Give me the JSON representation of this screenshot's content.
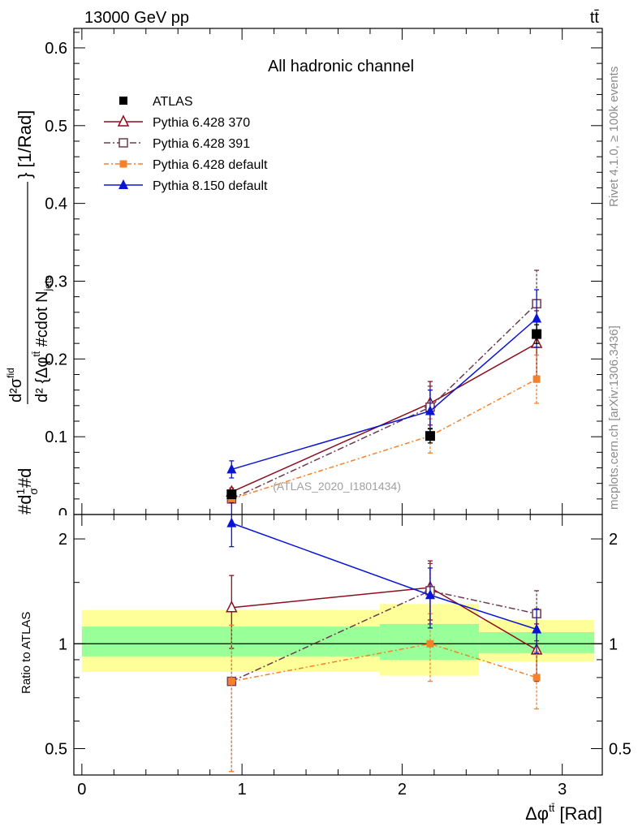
{
  "header": {
    "energy": "13000 GeV pp",
    "process": "tt̄"
  },
  "side": {
    "rivet": "Rivet 4.1.0, ≥ 100k events",
    "mcplots": "mcplots.cern.ch [arXiv:1306.3436]"
  },
  "colors": {
    "atlas": "#000000",
    "p370": "#8b0f1e",
    "p391": "#6b3a4e",
    "p6def": "#f5822a",
    "p8def": "#0a14d6",
    "band_inner": "#99ff99",
    "band_outer": "#ffff99"
  },
  "chart_data": [
    {
      "id": "main",
      "type": "scatter",
      "title": "All hadronic channel",
      "watermark": "(ATLAS_2020_I1801434)",
      "ylabel": "#d¹⁄σ#d  d²σᶦᵈ / d²{Δφᵗᵗ} #cdot Nⱼₑₜₛ } [1/Rad]",
      "ylabel_parts": [
        "#d",
        "1",
        "σ",
        "#d",
        "d²σ",
        "fid",
        "d² {Δφ",
        "tt̄",
        " #cdot N",
        "jets",
        "} [1/Rad]"
      ],
      "xlim": [
        -0.05,
        3.25
      ],
      "ylim": [
        0,
        0.625
      ],
      "yticks": [
        0.1,
        0.2,
        0.3,
        0.4,
        0.5,
        0.6
      ],
      "ytick_labels": [
        "0.1",
        "0.2",
        "0.3",
        "0.4",
        "0.5",
        "0.6"
      ],
      "ytick_zero_label": "0",
      "x": [
        0.935,
        2.175,
        2.84
      ],
      "series": [
        {
          "name": "ATLAS",
          "key": "atlas",
          "values": [
            0.026,
            0.101,
            0.232
          ],
          "err": [
            0.003,
            0.009,
            0.012
          ],
          "style": "data"
        },
        {
          "name": "Pythia 6.428 370",
          "key": "p370",
          "values": [
            0.029,
            0.143,
            0.22
          ],
          "err": [
            0.005,
            0.028,
            0.042
          ],
          "style": "triangle-open"
        },
        {
          "name": "Pythia 6.428 391",
          "key": "p391",
          "values": [
            0.02,
            0.138,
            0.271
          ],
          "err": [
            0.004,
            0.027,
            0.043
          ],
          "style": "square-open"
        },
        {
          "name": "Pythia 6.428 default",
          "key": "p6def",
          "values": [
            0.02,
            0.101,
            0.174
          ],
          "err": [
            0.004,
            0.022,
            0.031
          ],
          "style": "square-filled"
        },
        {
          "name": "Pythia 8.150 default",
          "key": "p8def",
          "values": [
            0.058,
            0.133,
            0.252
          ],
          "err": [
            0.011,
            0.027,
            0.037
          ],
          "style": "triangle-filled"
        }
      ]
    },
    {
      "id": "ratio",
      "type": "scatter",
      "ylabel": "Ratio to ATLAS",
      "xlabel": "Δφ",
      "xlabel_sup": "tt̄",
      "xlabel_unit": " [Rad]",
      "ylog": true,
      "ylim": [
        0.42,
        2.35
      ],
      "yticks": [
        0.5,
        1,
        2
      ],
      "ytick_labels": [
        "0.5",
        "1",
        "2"
      ],
      "xticks": [
        0,
        1,
        2,
        3
      ],
      "xtick_labels": [
        "0",
        "1",
        "2",
        "3"
      ],
      "bands": [
        {
          "x0": 0.0,
          "x1": 1.86,
          "inner": [
            0.92,
            1.12
          ],
          "outer": [
            0.83,
            1.25
          ]
        },
        {
          "x0": 1.86,
          "x1": 2.48,
          "inner": [
            0.9,
            1.14
          ],
          "outer": [
            0.81,
            1.3
          ]
        },
        {
          "x0": 2.48,
          "x1": 3.2,
          "inner": [
            0.94,
            1.08
          ],
          "outer": [
            0.89,
            1.17
          ]
        }
      ],
      "series": [
        {
          "key": "p370",
          "values": [
            1.27,
            1.45,
            0.96
          ],
          "err": [
            0.3,
            0.28,
            0.18
          ],
          "style": "triangle-open"
        },
        {
          "key": "p391",
          "values": [
            0.78,
            1.42,
            1.22
          ],
          "err": [
            0.35,
            0.28,
            0.2
          ],
          "style": "square-open"
        },
        {
          "key": "p6def",
          "values": [
            0.78,
            1.0,
            0.8
          ],
          "err": [
            0.35,
            0.22,
            0.15
          ],
          "style": "square-filled"
        },
        {
          "key": "p8def",
          "values": [
            2.22,
            1.38,
            1.1
          ],
          "err": [
            0.32,
            0.27,
            0.16
          ],
          "style": "triangle-filled"
        }
      ]
    }
  ]
}
